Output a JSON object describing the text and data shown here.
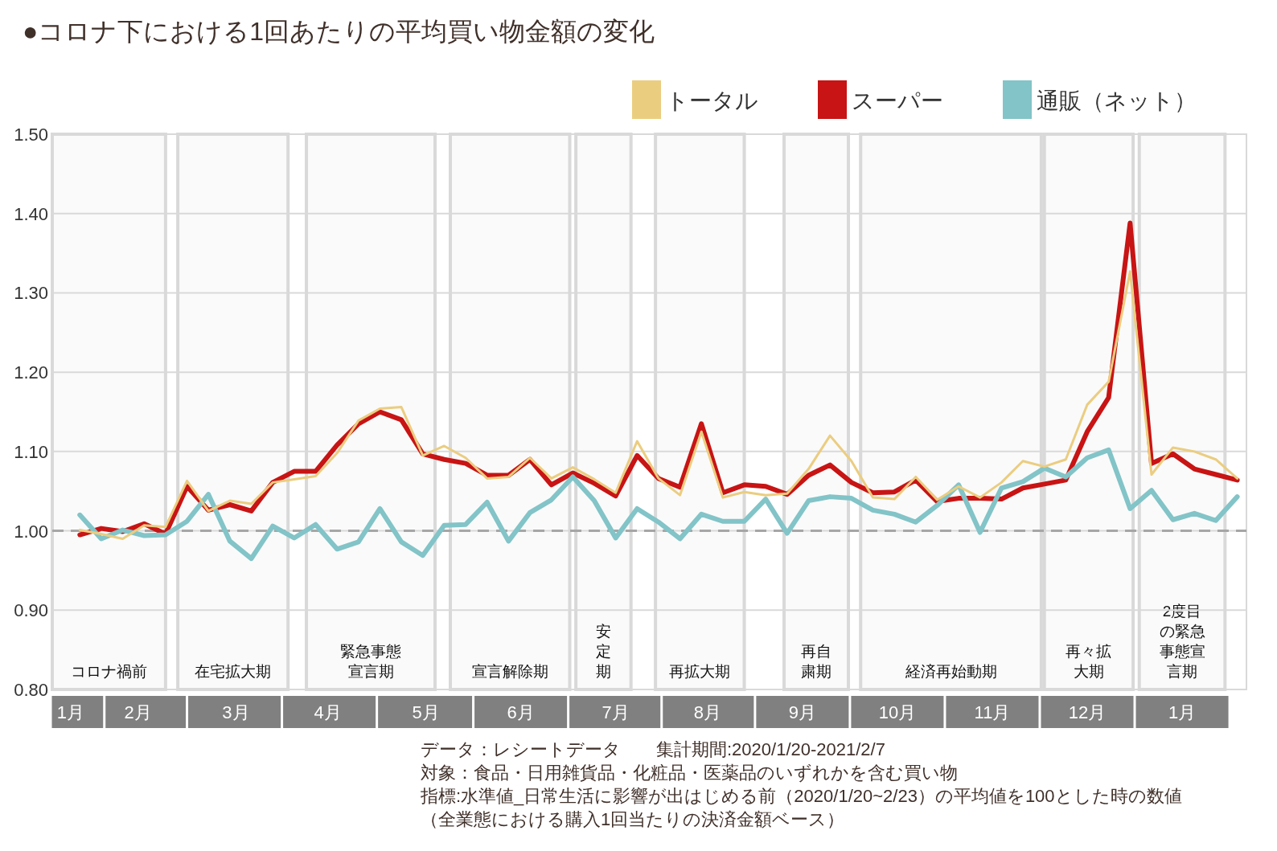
{
  "chart_data": {
    "type": "line",
    "title": "●コロナ下における1回あたりの平均買い物金額の変化",
    "x": [
      "2020-01-20",
      "2020-01-27",
      "2020-02-03",
      "2020-02-10",
      "2020-02-17",
      "2020-02-24",
      "2020-03-02",
      "2020-03-09",
      "2020-03-16",
      "2020-03-23",
      "2020-03-30",
      "2020-04-06",
      "2020-04-13",
      "2020-04-20",
      "2020-04-27",
      "2020-05-04",
      "2020-05-11",
      "2020-05-18",
      "2020-05-25",
      "2020-06-01",
      "2020-06-08",
      "2020-06-15",
      "2020-06-22",
      "2020-06-29",
      "2020-07-06",
      "2020-07-13",
      "2020-07-20",
      "2020-07-27",
      "2020-08-03",
      "2020-08-10",
      "2020-08-17",
      "2020-08-24",
      "2020-08-31",
      "2020-09-07",
      "2020-09-14",
      "2020-09-21",
      "2020-09-28",
      "2020-10-05",
      "2020-10-12",
      "2020-10-19",
      "2020-10-26",
      "2020-11-02",
      "2020-11-09",
      "2020-11-16",
      "2020-11-23",
      "2020-11-30",
      "2020-12-07",
      "2020-12-14",
      "2020-12-21",
      "2020-12-28",
      "2021-01-04",
      "2021-01-11",
      "2021-01-18",
      "2021-01-25",
      "2021-02-01"
    ],
    "series": [
      {
        "name": "トータル",
        "color": "#ebcd80",
        "values": [
          1.001,
          0.996,
          0.99,
          1.007,
          1.005,
          1.063,
          1.025,
          1.038,
          1.034,
          1.061,
          1.065,
          1.069,
          1.098,
          1.139,
          1.154,
          1.156,
          1.095,
          1.107,
          1.092,
          1.066,
          1.068,
          1.092,
          1.066,
          1.08,
          1.065,
          1.048,
          1.113,
          1.066,
          1.045,
          1.125,
          1.042,
          1.049,
          1.045,
          1.047,
          1.078,
          1.12,
          1.088,
          1.042,
          1.04,
          1.068,
          1.039,
          1.056,
          1.042,
          1.061,
          1.088,
          1.081,
          1.09,
          1.159,
          1.188,
          1.327,
          1.071,
          1.105,
          1.1,
          1.09,
          1.066
        ]
      },
      {
        "name": "スーパー",
        "color": "#c81414",
        "values": [
          0.995,
          1.003,
          0.999,
          1.009,
          0.996,
          1.056,
          1.026,
          1.033,
          1.025,
          1.061,
          1.075,
          1.075,
          1.108,
          1.135,
          1.15,
          1.14,
          1.097,
          1.09,
          1.085,
          1.07,
          1.07,
          1.09,
          1.058,
          1.073,
          1.06,
          1.044,
          1.095,
          1.066,
          1.055,
          1.135,
          1.048,
          1.058,
          1.056,
          1.046,
          1.07,
          1.083,
          1.061,
          1.048,
          1.049,
          1.064,
          1.037,
          1.041,
          1.041,
          1.04,
          1.054,
          1.059,
          1.064,
          1.125,
          1.168,
          1.388,
          1.085,
          1.097,
          1.078,
          1.071,
          1.064
        ]
      },
      {
        "name": "通販（ネット）",
        "color": "#82c4c8",
        "values": [
          1.02,
          0.99,
          1.001,
          0.994,
          0.995,
          1.012,
          1.046,
          0.987,
          0.965,
          1.006,
          0.991,
          1.008,
          0.977,
          0.986,
          1.028,
          0.986,
          0.969,
          1.007,
          1.008,
          1.036,
          0.987,
          1.023,
          1.039,
          1.068,
          1.038,
          0.991,
          1.028,
          1.011,
          0.99,
          1.021,
          1.012,
          1.012,
          1.04,
          0.997,
          1.038,
          1.043,
          1.041,
          1.026,
          1.021,
          1.011,
          1.032,
          1.058,
          0.998,
          1.054,
          1.062,
          1.079,
          1.068,
          1.092,
          1.102,
          1.028,
          1.051,
          1.014,
          1.022,
          1.013,
          1.043
        ]
      }
    ],
    "xlim": [
      "2020-01-11",
      "2021-02-04"
    ],
    "xticks": [
      {
        "value": "2020-01-17",
        "label": "1月"
      },
      {
        "value": "2020-02-08",
        "label": "2月"
      },
      {
        "value": "2020-03-11",
        "label": "3月"
      },
      {
        "value": "2020-04-10",
        "label": "4月"
      },
      {
        "value": "2020-05-12",
        "label": "5月"
      },
      {
        "value": "2020-06-12",
        "label": "6月"
      },
      {
        "value": "2020-07-13",
        "label": "7月"
      },
      {
        "value": "2020-08-12",
        "label": "8月"
      },
      {
        "value": "2020-09-12",
        "label": "9月"
      },
      {
        "value": "2020-10-13",
        "label": "10月"
      },
      {
        "value": "2020-11-13",
        "label": "11月"
      },
      {
        "value": "2020-12-14",
        "label": "12月"
      },
      {
        "value": "2021-01-14",
        "label": "1月"
      }
    ],
    "ylim": [
      0.8,
      1.5
    ],
    "yticks": [
      {
        "value": 0.8,
        "label": "0.80"
      },
      {
        "value": 0.9,
        "label": "0.90"
      },
      {
        "value": 1.0,
        "label": "1.00"
      },
      {
        "value": 1.1,
        "label": "1.10"
      },
      {
        "value": 1.2,
        "label": "1.20"
      },
      {
        "value": 1.3,
        "label": "1.30"
      },
      {
        "value": 1.4,
        "label": "1.40"
      },
      {
        "value": 1.5,
        "label": "1.50"
      }
    ],
    "grid": "y",
    "legend": "top right",
    "ref_lines": [
      {
        "axis": "y",
        "value": 1.0,
        "color": "#a6a6a6",
        "line_style": "dashed"
      }
    ],
    "bands": [
      {
        "axis": "x",
        "from": "2020-01-11",
        "to": "2020-02-17",
        "label": "コロナ禍前"
      },
      {
        "axis": "x",
        "from": "2020-02-21",
        "to": "2020-03-28",
        "label": "在宅拡大期"
      },
      {
        "axis": "x",
        "from": "2020-04-03",
        "to": "2020-05-15",
        "label": "緊急事態宣言期"
      },
      {
        "axis": "x",
        "from": "2020-05-20",
        "to": "2020-06-28",
        "label": "宣言解除期"
      },
      {
        "axis": "x",
        "from": "2020-06-30",
        "to": "2020-07-18",
        "label": "安定期"
      },
      {
        "axis": "x",
        "from": "2020-07-26",
        "to": "2020-08-24",
        "label": "再拡大期"
      },
      {
        "axis": "x",
        "from": "2020-09-06",
        "to": "2020-09-27",
        "label": "再自粛期"
      },
      {
        "axis": "x",
        "from": "2020-10-01",
        "to": "2020-11-29",
        "label": "経済再始動期"
      },
      {
        "axis": "x",
        "from": "2020-11-30",
        "to": "2020-12-29",
        "label": "再々拡大期"
      },
      {
        "axis": "x",
        "from": "2020-12-31",
        "to": "2021-01-28",
        "label": "2度目の緊急事態宣言期"
      }
    ],
    "annotations": [
      "データ：レシートデータ　　集計期間:2020/1/20-2021/2/7",
      "対象：食品・日用雑貨品・化粧品・医薬品のいずれかを含む買い物",
      "指標:水準値_日常生活に影響が出はじめる前（2020/1/20~2/23）の平均値を100とした時の数値",
      "（全業態における購入1回当たりの決済金額ベース）"
    ]
  }
}
